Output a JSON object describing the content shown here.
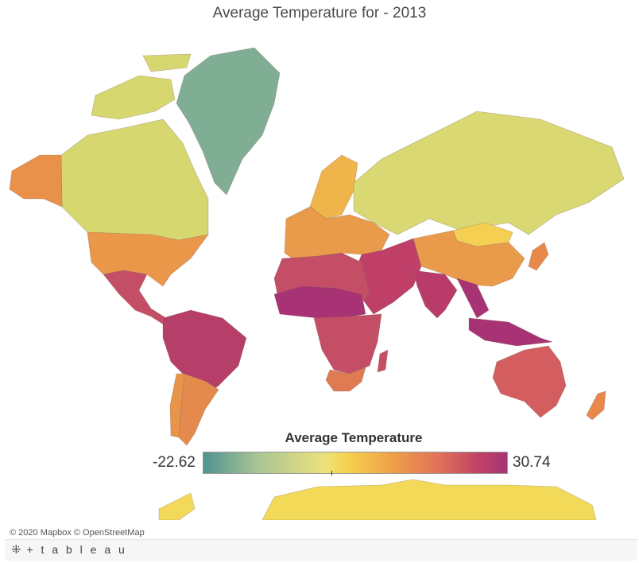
{
  "title": "Average Temperature for - 2013",
  "legend": {
    "title": "Average Temperature",
    "min": "-22.62",
    "max": "30.74",
    "color_min": "#4f9390",
    "color_mid": "#f5d350",
    "color_max": "#a83374"
  },
  "map": {
    "region_colors": {
      "greenland": "#7fae95",
      "canada": "#d7d770",
      "alaska": "#e9914a",
      "usa": "#ea974a",
      "mexico": "#c44e66",
      "south_america_north": "#b63f69",
      "argentina": "#e48a4c",
      "chile": "#e8944a",
      "europe_north": "#f0b54a",
      "europe": "#ea9a4b",
      "russia": "#d9d873",
      "mongolia": "#f5cf52",
      "china": "#ea9a4b",
      "middle_east": "#bf3f68",
      "sahel": "#a83374",
      "africa": "#c44e66",
      "south_africa": "#e07a52",
      "india": "#b83b6a",
      "southeast_asia": "#a83374",
      "australia": "#d45d5f",
      "new_zealand": "#e8884b",
      "antarctica": "#f2da58",
      "japan": "#e8884b"
    }
  },
  "attribution": {
    "mapbox": "© 2020 Mapbox",
    "osm": "© OpenStreetMap"
  },
  "brand": {
    "name": "+ t a b l e a u"
  }
}
